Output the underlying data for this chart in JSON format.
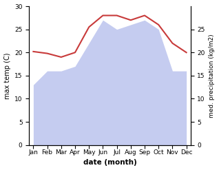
{
  "months": [
    "Jan",
    "Feb",
    "Mar",
    "Apr",
    "May",
    "Jun",
    "Jul",
    "Aug",
    "Sep",
    "Oct",
    "Nov",
    "Dec"
  ],
  "temperature": [
    20.2,
    19.8,
    19.0,
    20.0,
    25.5,
    28.0,
    28.0,
    27.0,
    28.0,
    26.0,
    22.0,
    20.0
  ],
  "precipitation": [
    13.0,
    16.0,
    16.0,
    17.0,
    22.0,
    27.0,
    25.0,
    26.0,
    27.0,
    25.0,
    16.0,
    16.0
  ],
  "temp_color": "#c83a3a",
  "precip_fill_color": "#c5ccf0",
  "xlabel": "date (month)",
  "ylabel_left": "max temp (C)",
  "ylabel_right": "med. precipitation (kg/m2)",
  "ylim_left": [
    0,
    30
  ],
  "ylim_right": [
    0,
    30
  ],
  "yticks_left": [
    0,
    5,
    10,
    15,
    20,
    25,
    30
  ],
  "yticks_right": [
    0,
    5,
    10,
    15,
    20,
    25
  ],
  "background_color": "#ffffff"
}
